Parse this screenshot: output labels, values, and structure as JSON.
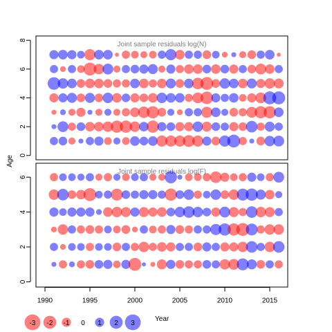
{
  "colors": {
    "negative": "#ff0000",
    "positive": "#0000ff",
    "frame": "#000000",
    "title": "#7f7f7f"
  },
  "chart_data": [
    {
      "type": "bubble",
      "title": "Joint sample residuals log(N)",
      "ylabel": "Age",
      "xlim": [
        1989,
        2017
      ],
      "ylim": [
        -0.3,
        8.3
      ],
      "yticks": [
        0,
        2,
        4,
        6,
        8
      ],
      "years": [
        1991,
        1992,
        1993,
        1994,
        1995,
        1996,
        1997,
        1998,
        1999,
        2000,
        2001,
        2002,
        2003,
        2004,
        2005,
        2006,
        2007,
        2008,
        2009,
        2010,
        2011,
        2012,
        2013,
        2014,
        2015,
        2016
      ],
      "ages": [
        1,
        2,
        3,
        4,
        5,
        6,
        7
      ],
      "residuals": [
        [
          0.8,
          0.9,
          -0.6,
          0.3,
          0.8,
          1.0,
          -0.7,
          0.6,
          -0.7,
          1.1,
          0.9,
          1.1,
          -1.5,
          -1.5,
          -1.5,
          -1.7,
          -1.5,
          1.0,
          -0.9,
          1.5,
          2.0,
          -0.8,
          0.3,
          -0.9,
          1.3,
          1.4
        ],
        [
          0.3,
          1.4,
          -0.8,
          0.9,
          -1.1,
          -1.1,
          -1.3,
          -1.8,
          -1.8,
          -1.3,
          1.1,
          -1.8,
          1.0,
          0.9,
          -1.0,
          -1.0,
          1.3,
          -1.2,
          0.9,
          0.8,
          -1.0,
          -0.9,
          1.6,
          -0.8,
          1.2,
          0.8
        ],
        [
          -0.3,
          0.4,
          -0.6,
          -1.0,
          0.3,
          -0.6,
          0.6,
          -0.6,
          -0.8,
          -1.1,
          -1.6,
          -1.8,
          -0.9,
          0.6,
          -0.4,
          0.8,
          0.8,
          -1.5,
          1.1,
          0.6,
          -0.9,
          -0.8,
          -1.4,
          -1.8,
          -1.8,
          1.1
        ],
        [
          -1.0,
          1.0,
          1.2,
          -0.9,
          1.2,
          -0.9,
          1.3,
          -1.1,
          0.9,
          -1.0,
          -0.9,
          -1.1,
          1.3,
          1.1,
          1.1,
          -0.8,
          -1.4,
          -1.9,
          1.0,
          0.8,
          1.1,
          -0.7,
          -1.0,
          -1.4,
          2.0,
          2.0
        ],
        [
          1.9,
          1.3,
          1.1,
          -0.9,
          -1.1,
          -1.1,
          -0.9,
          -0.8,
          -0.8,
          1.1,
          -1.1,
          -0.8,
          -1.1,
          1.2,
          -0.9,
          1.1,
          -1.6,
          -2.0,
          -0.9,
          1.3,
          1.1,
          -1.1,
          1.2,
          -1.0,
          -1.3,
          -1.2
        ],
        [
          0.8,
          -0.4,
          0.8,
          -0.7,
          -2.0,
          -1.3,
          1.4,
          -0.6,
          0.8,
          0.9,
          1.0,
          1.2,
          -0.6,
          1.0,
          -0.8,
          -1.1,
          -1.1,
          0.9,
          -1.1,
          0.9,
          -1.0,
          0.8,
          -0.9,
          -1.4,
          -1.1,
          0.8
        ],
        [
          1.0,
          1.1,
          1.0,
          0.7,
          -1.5,
          1.1,
          1.1,
          -0.2,
          -0.8,
          -0.7,
          -0.6,
          -0.7,
          0.8,
          1.5,
          -1.1,
          0.8,
          0.8,
          -0.9,
          0.7,
          -0.4,
          0.3,
          -0.6,
          -0.9,
          0.8,
          1.1,
          -0.2
        ]
      ]
    },
    {
      "type": "bubble",
      "title": "Joint sample residuals log(F)",
      "ylabel": "",
      "xlabel": "Year",
      "xlim": [
        1989,
        2017
      ],
      "ylim": [
        -0.3,
        6.8
      ],
      "xticks": [
        1990,
        1995,
        2000,
        2005,
        2010,
        2015
      ],
      "yticks": [
        0,
        2,
        4,
        6
      ],
      "years": [
        1991,
        1992,
        1993,
        1994,
        1995,
        1996,
        1997,
        1998,
        1999,
        2000,
        2001,
        2002,
        2003,
        2004,
        2005,
        2006,
        2007,
        2008,
        2009,
        2010,
        2011,
        2012,
        2013,
        2014,
        2015,
        2016
      ],
      "ages": [
        1,
        2,
        3,
        4,
        5,
        6
      ],
      "residuals": [
        [
          0.3,
          -0.8,
          0.4,
          -0.8,
          -0.9,
          0.9,
          1.0,
          -0.7,
          1.0,
          -2.0,
          0.2,
          -0.3,
          -1.2,
          1.0,
          -0.9,
          -0.8,
          -0.8,
          0.9,
          0.8,
          -1.3,
          -1.4,
          1.7,
          1.2,
          -0.9,
          0.8,
          -0.8
        ],
        [
          0.8,
          -0.4,
          0.7,
          0.7,
          -0.8,
          0.7,
          0.7,
          -0.9,
          0.8,
          -0.8,
          -1.3,
          -0.8,
          -1.1,
          -1.0,
          0.8,
          0.8,
          -0.9,
          1.0,
          0.8,
          -1.0,
          -1.0,
          -1.3,
          1.6,
          0.8,
          -1.3,
          1.6
        ],
        [
          -0.4,
          -1.3,
          0.8,
          -0.8,
          -0.9,
          -0.8,
          0.7,
          -0.7,
          -0.9,
          -0.4,
          0.8,
          -0.7,
          -0.8,
          1.0,
          -0.9,
          -0.8,
          0.8,
          0.8,
          1.5,
          1.8,
          -1.8,
          -2.0,
          1.7,
          -0.8,
          -1.3,
          -1.3
        ],
        [
          1.0,
          0.7,
          1.0,
          1.0,
          1.0,
          0.4,
          -1.1,
          -1.3,
          -1.2,
          1.0,
          -1.2,
          -1.0,
          -1.1,
          0.9,
          1.3,
          1.6,
          1.3,
          0.9,
          -1.0,
          1.4,
          -1.2,
          -0.8,
          1.6,
          -1.3,
          -1.2,
          0.8
        ],
        [
          -1.3,
          1.6,
          -0.9,
          -1.1,
          -2.0,
          0.7,
          0.8,
          -1.7,
          0.9,
          0.8,
          1.0,
          1.0,
          0.8,
          -1.8,
          0.9,
          1.3,
          -0.8,
          0.7,
          1.3,
          -0.9,
          -1.3,
          1.7,
          1.8,
          1.2,
          -1.1,
          0.6
        ],
        [
          -0.8,
          0.7,
          0.7,
          0.6,
          0.8,
          -0.6,
          -0.8,
          0.6,
          -0.7,
          0.7,
          0.8,
          -0.6,
          -0.6,
          1.8,
          0.3,
          -0.7,
          -0.7,
          -0.8,
          -1.6,
          -1.0,
          -0.7,
          -0.8,
          1.0,
          0.7,
          -0.8,
          1.4
        ]
      ]
    }
  ],
  "legend": {
    "items": [
      {
        "label": "-3",
        "value": -3
      },
      {
        "label": "-2",
        "value": -2
      },
      {
        "label": "-1",
        "value": -1
      },
      {
        "label": "0",
        "value": 0
      },
      {
        "label": "1",
        "value": 1
      },
      {
        "label": "2",
        "value": 2
      },
      {
        "label": "3",
        "value": 3
      }
    ]
  }
}
